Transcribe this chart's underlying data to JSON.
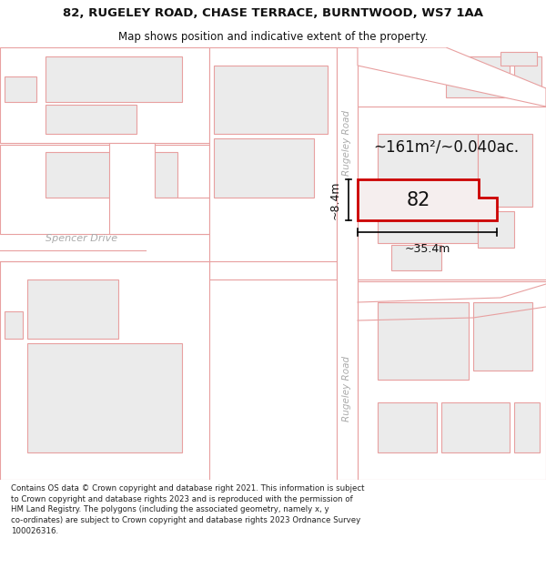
{
  "title_line1": "82, RUGELEY ROAD, CHASE TERRACE, BURNTWOOD, WS7 1AA",
  "title_line2": "Map shows position and indicative extent of the property.",
  "footer_text": "Contains OS data © Crown copyright and database right 2021. This information is subject to Crown copyright and database rights 2023 and is reproduced with the permission of HM Land Registry. The polygons (including the associated geometry, namely x, y co-ordinates) are subject to Crown copyright and database rights 2023 Ordnance Survey 100026316.",
  "area_label": "~161m²/~0.040ac.",
  "width_label": "~35.4m",
  "height_label": "~8.4m",
  "property_number": "82",
  "bg_color": "#ffffff",
  "map_bg": "#ffffff",
  "building_fill": "#ebebeb",
  "building_stroke": "#e8a0a0",
  "road_color": "#e8a0a0",
  "highlight_fill": "#f5eeee",
  "highlight_stroke": "#cc0000",
  "road_label_color": "#aaaaaa",
  "street_label_color": "#aaaaaa",
  "text_color": "#111111",
  "title_fontsize": 9.5,
  "subtitle_fontsize": 8.5,
  "footer_fontsize": 6.2
}
